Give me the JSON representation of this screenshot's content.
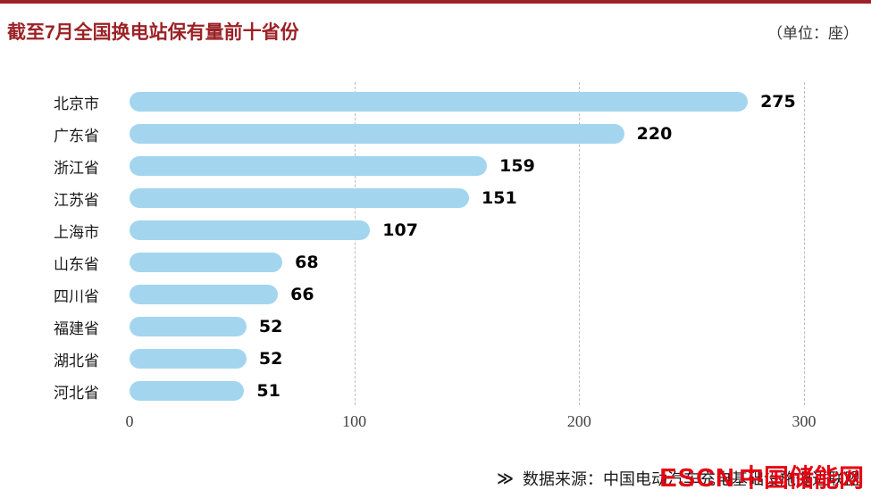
{
  "page": {
    "title": "截至7月全国换电站保有量前十省份",
    "unit_note": "（单位：座）"
  },
  "chart_data": {
    "type": "bar",
    "orientation": "horizontal",
    "title": "截至7月全国换电站保有量前十省份",
    "unit": "座",
    "categories": [
      "北京市",
      "广东省",
      "浙江省",
      "江苏省",
      "上海市",
      "山东省",
      "四川省",
      "福建省",
      "湖北省",
      "河北省"
    ],
    "values": [
      275,
      220,
      159,
      151,
      107,
      68,
      66,
      52,
      52,
      51
    ],
    "xlim": [
      0,
      300
    ],
    "xticks": [
      "0",
      "100",
      "200",
      "300"
    ],
    "grid": "vertical dashed lines at 100, 200, 300",
    "legend": "none",
    "bar_color": "#a3d5ef",
    "value_label_color": "#000000",
    "title_color": "#9b2226"
  },
  "footer": {
    "arrow": "≫",
    "source": "数据来源：中国电动汽车充电基础设施促进联盟",
    "watermark_en": "ESCN",
    "watermark_cn": "中国储能网",
    "watermark_color": "#e60012"
  }
}
